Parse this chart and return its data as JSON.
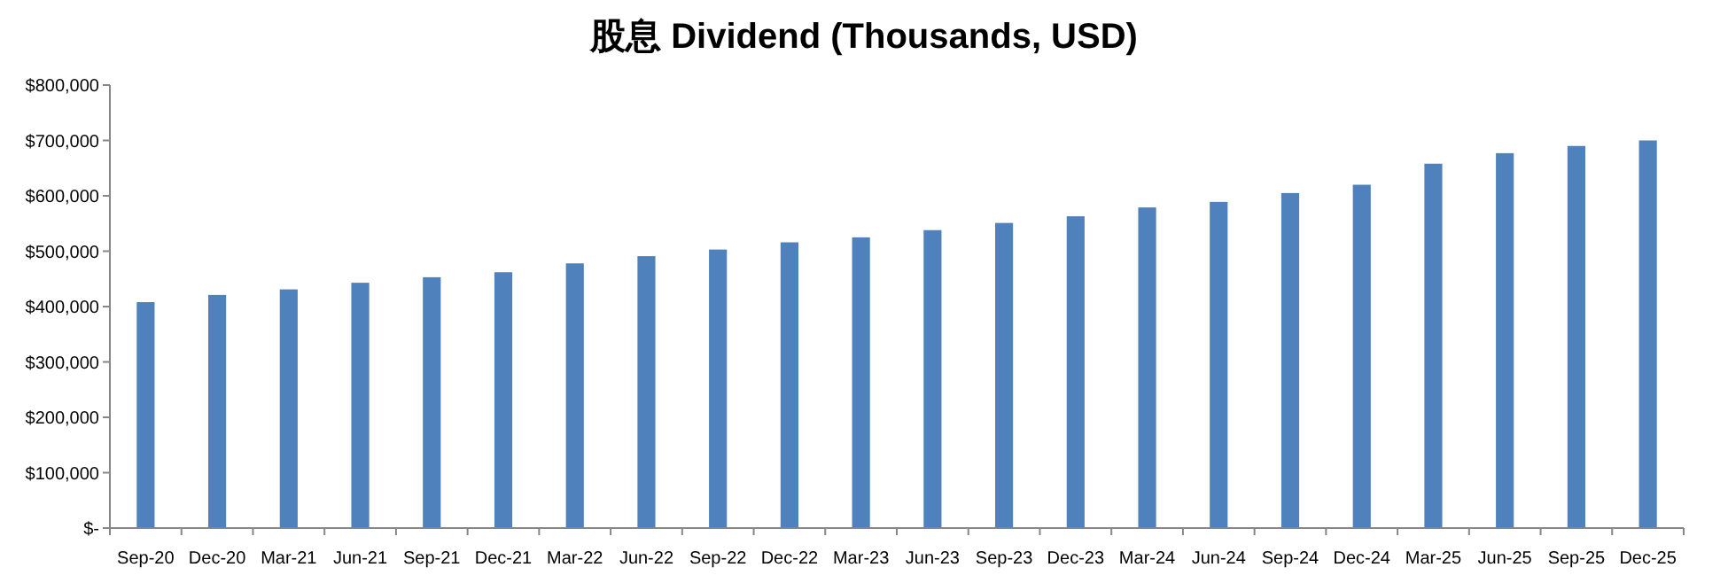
{
  "chart_data": {
    "type": "bar",
    "title": "股息 Dividend (Thousands, USD)",
    "categories": [
      "Sep-20",
      "Dec-20",
      "Mar-21",
      "Jun-21",
      "Sep-21",
      "Dec-21",
      "Mar-22",
      "Jun-22",
      "Sep-22",
      "Dec-22",
      "Mar-23",
      "Jun-23",
      "Sep-23",
      "Dec-23",
      "Mar-24",
      "Jun-24",
      "Sep-24",
      "Dec-24",
      "Mar-25",
      "Jun-25",
      "Sep-25",
      "Dec-25"
    ],
    "series": [
      {
        "color": "#4f81bd",
        "values": [
          408000,
          421000,
          431000,
          443000,
          453000,
          462000,
          478000,
          491000,
          503000,
          516000,
          525000,
          538000,
          551000,
          563000,
          579000,
          589000,
          605000,
          620000,
          658000,
          677000,
          690000,
          700000
        ]
      }
    ],
    "ylim": [
      0,
      800000
    ],
    "yticks": [
      {
        "value": 0,
        "label": "$-"
      },
      {
        "value": 100000,
        "label": "$100,000"
      },
      {
        "value": 200000,
        "label": "$200,000"
      },
      {
        "value": 300000,
        "label": "$300,000"
      },
      {
        "value": 400000,
        "label": "$400,000"
      },
      {
        "value": 500000,
        "label": "$500,000"
      },
      {
        "value": 600000,
        "label": "$600,000"
      },
      {
        "value": 700000,
        "label": "$700,000"
      },
      {
        "value": 800000,
        "label": "$800,000"
      }
    ],
    "grid": false
  }
}
